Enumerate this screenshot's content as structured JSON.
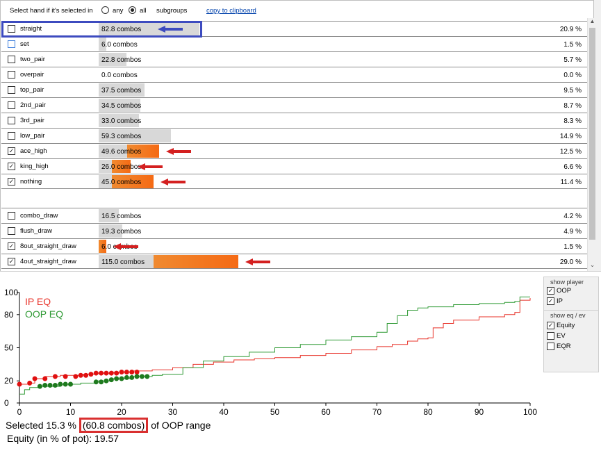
{
  "header": {
    "select_label": "Select hand if it's selected in",
    "radio_any": "any",
    "radio_all": "all",
    "selected_radio": "all",
    "subgroups_label": "subgroups",
    "copy_link": "copy to clipboard"
  },
  "groups": [
    {
      "name": "straight",
      "combos": "82.8 combos",
      "value": 82.8,
      "pct": "20.9 %",
      "checked": false,
      "selected_value": 0
    },
    {
      "name": "set",
      "combos": "6.0 combos",
      "value": 6.0,
      "pct": "1.5 %",
      "checked": false,
      "selected_value": 0
    },
    {
      "name": "two_pair",
      "combos": "22.8 combos",
      "value": 22.8,
      "pct": "5.7 %",
      "checked": false,
      "selected_value": 0
    },
    {
      "name": "overpair",
      "combos": "0.0 combos",
      "value": 0.0,
      "pct": "0.0 %",
      "checked": false,
      "selected_value": 0
    },
    {
      "name": "top_pair",
      "combos": "37.5 combos",
      "value": 37.5,
      "pct": "9.5 %",
      "checked": false,
      "selected_value": 0
    },
    {
      "name": "2nd_pair",
      "combos": "34.5 combos",
      "value": 34.5,
      "pct": "8.7 %",
      "checked": false,
      "selected_value": 0
    },
    {
      "name": "3rd_pair",
      "combos": "33.0 combos",
      "value": 33.0,
      "pct": "8.3 %",
      "checked": false,
      "selected_value": 0
    },
    {
      "name": "low_pair",
      "combos": "59.3 combos",
      "value": 59.3,
      "pct": "14.9 %",
      "checked": false,
      "selected_value": 0
    },
    {
      "name": "ace_high",
      "combos": "49.6 combos",
      "value": 49.6,
      "pct": "12.5 %",
      "checked": true,
      "selected_value": 26
    },
    {
      "name": "king_high",
      "combos": "26.0 combos",
      "value": 26.0,
      "pct": "6.6 %",
      "checked": true,
      "selected_value": 15
    },
    {
      "name": "nothing",
      "combos": "45.0 combos",
      "value": 45.0,
      "pct": "11.4 %",
      "checked": true,
      "selected_value": 34
    }
  ],
  "draws": [
    {
      "name": "combo_draw",
      "combos": "16.5 combos",
      "value": 16.5,
      "pct": "4.2 %",
      "checked": false,
      "selected_value": 0
    },
    {
      "name": "flush_draw",
      "combos": "19.3 combos",
      "value": 19.3,
      "pct": "4.9 %",
      "checked": false,
      "selected_value": 0
    },
    {
      "name": "8out_straight_draw",
      "combos": "6.0 combos",
      "value": 6.0,
      "pct": "1.5 %",
      "checked": true,
      "selected_value": 6
    },
    {
      "name": "4out_straight_draw",
      "combos": "115.0 combos",
      "value": 115.0,
      "pct": "29.0 %",
      "checked": true,
      "selected_value": 70
    }
  ],
  "side_panel": {
    "show_player_title": "show player",
    "players": [
      {
        "label": "OOP",
        "checked": true
      },
      {
        "label": "IP",
        "checked": true
      }
    ],
    "show_eq_title": "show eq / ev",
    "metrics": [
      {
        "label": "Equity",
        "checked": true
      },
      {
        "label": "EV",
        "checked": false
      },
      {
        "label": "EQR",
        "checked": false
      }
    ]
  },
  "colors": {
    "ip": "#e8332a",
    "oop": "#2f9a34",
    "ip_dots": "#e01010",
    "oop_dots": "#1e7a1e",
    "bar_bg": "#d8d8d8",
    "bar_fg": "#f4781e",
    "red_arrow": "#d42020",
    "blue_arrow": "#3d4bbf"
  },
  "summary": {
    "prefix": "Selected 15.3 %",
    "combos": "(60.8 combos)",
    "suffix": "of OOP range",
    "equity": "Equity (in % of pot): 19.57"
  },
  "chart_data": {
    "type": "line",
    "xlabel": "",
    "ylabel": "",
    "xlim": [
      0,
      100
    ],
    "ylim": [
      0,
      100
    ],
    "xticks": [
      0,
      10,
      20,
      30,
      40,
      50,
      60,
      70,
      80,
      90,
      100
    ],
    "yticks": [
      0,
      20,
      50,
      80,
      100
    ],
    "series": [
      {
        "name": "IP EQ",
        "x": [
          0,
          2,
          3,
          5,
          8,
          12,
          15,
          18,
          22,
          26,
          30,
          34,
          38,
          42,
          46,
          50,
          55,
          60,
          65,
          70,
          73,
          76,
          78,
          80,
          81,
          83,
          85,
          90,
          95,
          97,
          98,
          100
        ],
        "y": [
          17,
          18,
          22,
          24,
          25,
          26,
          27,
          28,
          29,
          30,
          32,
          35,
          37,
          39,
          40,
          41,
          43,
          45,
          48,
          51,
          53,
          56,
          58,
          59,
          68,
          72,
          75,
          78,
          80,
          82,
          93,
          95
        ]
      },
      {
        "name": "OOP EQ",
        "x": [
          0,
          1,
          2,
          4,
          8,
          12,
          15,
          18,
          22,
          26,
          28,
          32,
          36,
          40,
          45,
          50,
          55,
          60,
          65,
          70,
          72,
          74,
          76,
          78,
          80,
          85,
          90,
          95,
          97,
          98,
          100
        ],
        "y": [
          8,
          12,
          14,
          15,
          17,
          18,
          20,
          22,
          24,
          25,
          26,
          32,
          38,
          42,
          46,
          50,
          53,
          57,
          60,
          64,
          72,
          79,
          84,
          86,
          87,
          89,
          90,
          91,
          92,
          96,
          96
        ]
      }
    ],
    "highlight_ranges": [
      {
        "series": "IP EQ",
        "x": [
          0,
          2,
          3,
          5,
          7,
          9,
          11,
          12,
          13,
          14,
          15,
          16,
          17,
          18,
          19,
          20,
          21,
          22,
          23
        ],
        "y": [
          17,
          18,
          22,
          22,
          24,
          24,
          24,
          25,
          25,
          26,
          27,
          27,
          27,
          27,
          27,
          28,
          28,
          28,
          28
        ]
      },
      {
        "series": "OOP EQ",
        "x": [
          4,
          5,
          6,
          7,
          8,
          9,
          10,
          15,
          16,
          17,
          18,
          19,
          20,
          21,
          22,
          23,
          24,
          25
        ],
        "y": [
          15,
          16,
          16,
          16,
          17,
          17,
          17,
          19,
          19,
          20,
          21,
          22,
          22,
          23,
          23,
          24,
          24,
          24
        ]
      }
    ]
  }
}
